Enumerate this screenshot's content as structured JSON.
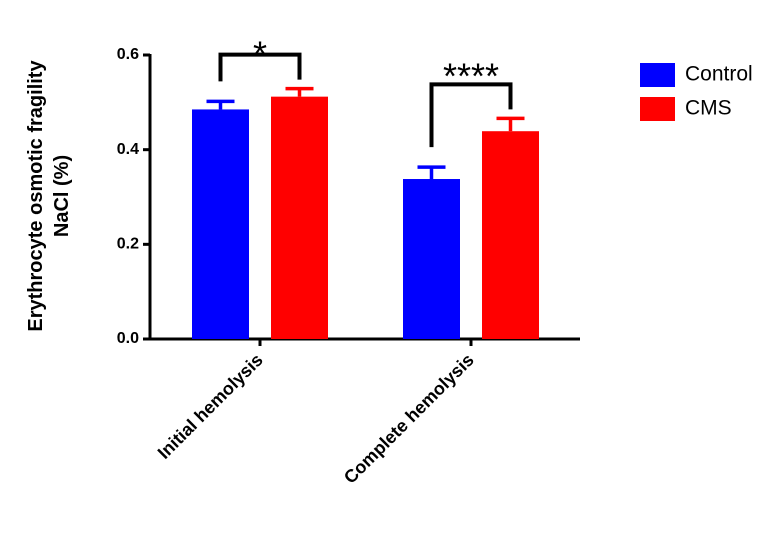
{
  "chart_data": {
    "type": "bar",
    "categories": [
      "Initial hemolysis",
      "Complete hemolysis"
    ],
    "series": [
      {
        "name": "Control",
        "values": [
          0.485,
          0.338
        ],
        "errors": [
          0.017,
          0.025
        ],
        "color": "#0000ff"
      },
      {
        "name": "CMS",
        "values": [
          0.512,
          0.439
        ],
        "errors": [
          0.017,
          0.027
        ],
        "color": "#ff0000"
      }
    ],
    "ylabel_lines": [
      "Erythrocyte osmotic fragility",
      "NaCl (%)"
    ],
    "ylim": [
      0,
      0.6
    ],
    "yticks": [
      "0.0",
      "0.2",
      "0.4",
      "0.6"
    ],
    "legend_position": "top-right",
    "grid": false,
    "annotations": [
      {
        "category": 0,
        "label": "*"
      },
      {
        "category": 1,
        "label": "****"
      }
    ]
  }
}
